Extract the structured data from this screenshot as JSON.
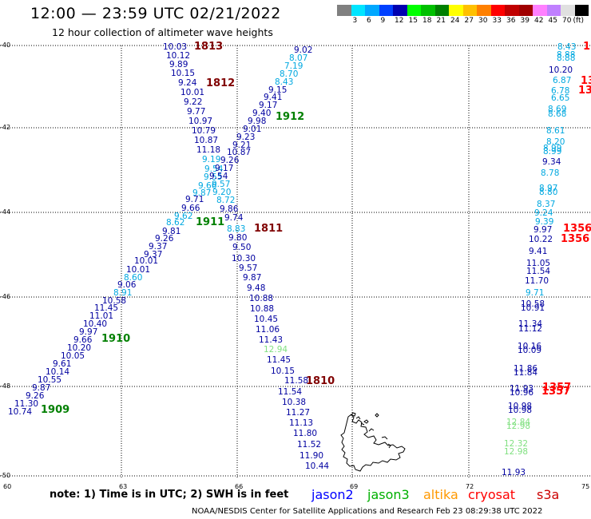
{
  "header": {
    "title": "12:00 — 23:59 UTC 02/21/2022",
    "subtitle": "12 hour collection of altimeter wave heights"
  },
  "legend": {
    "unit": "(ft)",
    "swatches": [
      {
        "color": "#808080",
        "label": ""
      },
      {
        "color": "#00e5ff",
        "label": "3"
      },
      {
        "color": "#00a8ff",
        "label": "6"
      },
      {
        "color": "#0040ff",
        "label": "9"
      },
      {
        "color": "#0000b0",
        "label": "12"
      },
      {
        "color": "#00ff00",
        "label": "15"
      },
      {
        "color": "#00c000",
        "label": "18"
      },
      {
        "color": "#008000",
        "label": "21"
      },
      {
        "color": "#ffff00",
        "label": "24"
      },
      {
        "color": "#ffc000",
        "label": "27"
      },
      {
        "color": "#ff8000",
        "label": "30"
      },
      {
        "color": "#ff0000",
        "label": "33"
      },
      {
        "color": "#c00000",
        "label": "36"
      },
      {
        "color": "#a00000",
        "label": "39"
      },
      {
        "color": "#ff80ff",
        "label": "42"
      },
      {
        "color": "#c080ff",
        "label": "45"
      },
      {
        "color": "#e0e0e0",
        "label": "70"
      },
      {
        "color": "#000000",
        "label": ""
      }
    ]
  },
  "axes": {
    "lat_labels": [
      "-40",
      "-42",
      "-44",
      "-46",
      "-48",
      "-50"
    ],
    "lon_labels": [
      "60",
      "63",
      "66",
      "69",
      "72",
      "75"
    ]
  },
  "passes": [
    {
      "id": "1813",
      "color": "#800000"
    },
    {
      "id": "1812",
      "color": "#800000"
    },
    {
      "id": "1912",
      "color": "#008000"
    },
    {
      "id": "1911",
      "color": "#008000"
    },
    {
      "id": "1811",
      "color": "#800000"
    },
    {
      "id": "1910",
      "color": "#008000"
    },
    {
      "id": "1810",
      "color": "#800000"
    },
    {
      "id": "1909",
      "color": "#008000"
    },
    {
      "id": "1356",
      "color": "#ff0000"
    },
    {
      "id": "1356",
      "color": "#ff0000"
    },
    {
      "id": "1357",
      "color": "#ff0000"
    },
    {
      "id": "1357",
      "color": "#ff0000"
    },
    {
      "id": "13",
      "color": "#ff0000"
    },
    {
      "id": "13",
      "color": "#ff0000"
    },
    {
      "id": "1",
      "color": "#ff0000"
    }
  ],
  "readings": {
    "jason2_a": [
      "10.03",
      "10.12",
      "9.89",
      "10.15",
      "9.24",
      "10.01",
      "9.22",
      "9.77",
      "10.97",
      "10.79",
      "10.87",
      "11.18",
      "9.19",
      "9.54",
      "9.55",
      "9.66",
      "9.87",
      "9.71",
      "9.66",
      "9.62",
      "8.62",
      "9.81",
      "9.26",
      "9.37",
      "9.37",
      "10.01",
      "10.01",
      "8.60",
      "9.06",
      "8.91",
      "10.58",
      "11.45",
      "11.01",
      "10.40",
      "9.97",
      "9.66",
      "10.20",
      "10.05",
      "9.61",
      "10.14",
      "10.55",
      "9.87",
      "9.26",
      "11.30",
      "10.74"
    ],
    "jason2_b": [
      "9.02",
      "8.07",
      "7.19",
      "8.70",
      "8.43",
      "9.15",
      "9.41",
      "9.17",
      "9.40",
      "9.98",
      "9.01",
      "9.23",
      "9.21",
      "10.87",
      "9.26",
      "9.17",
      "9.54",
      "9.57",
      "9.20",
      "8.72",
      "9.86",
      "9.74",
      "8.83",
      "9.80",
      "9.50",
      "10.30",
      "9.57",
      "9.87",
      "9.48",
      "10.88",
      "10.88",
      "10.45",
      "11.06",
      "11.43",
      "12.94",
      "11.45",
      "10.15",
      "11.58",
      "11.54",
      "10.38",
      "11.27",
      "11.13",
      "11.80",
      "11.52",
      "11.90",
      "10.44"
    ],
    "right": [
      "8.43",
      "8.88",
      "8.88",
      "10.20",
      "6.87",
      "6.78",
      "6.65",
      "8.69",
      "8.68",
      "8.61",
      "8.20",
      "8.99",
      "8.99",
      "9.34",
      "8.78",
      "8.97",
      "8.80",
      "8.37",
      "9.24",
      "9.39",
      "9.97",
      "10.22",
      "9.41",
      "11.05",
      "11.54",
      "11.70",
      "9.71",
      "10.58",
      "10.91",
      "11.34",
      "11.12",
      "10.16",
      "10.09",
      "11.86",
      "11.84",
      "11.93",
      "10.96",
      "10.98",
      "10.98",
      "12.84",
      "12.98",
      "12.32",
      "12.98",
      "11.93"
    ]
  },
  "footer": {
    "note": "note:  1) Time is in UTC;  2) SWH is in feet",
    "sats": [
      {
        "name": "jason2",
        "color": "#0000ff"
      },
      {
        "name": "jason3",
        "color": "#00b000"
      },
      {
        "name": "altika",
        "color": "#ff9900"
      },
      {
        "name": "cryosat",
        "color": "#ff0000"
      },
      {
        "name": "s3a",
        "color": "#cc0000"
      }
    ],
    "credit": "NOAA/NESDIS Center for Satellite Applications and Research    Feb 23 08:29:38 UTC 2022"
  }
}
